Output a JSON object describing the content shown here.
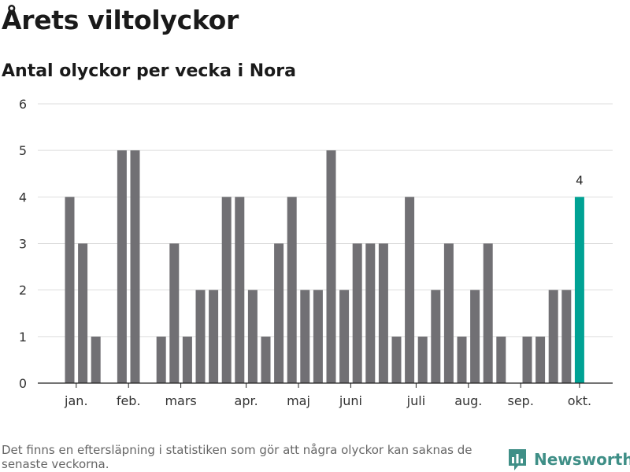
{
  "title": "Årets viltolyckor",
  "subtitle": "Antal olyckor per vecka i Nora",
  "footnote": "Det finns en eftersläpning i statistiken som gör att några olyckor kan saknas de senaste veckorna.",
  "brand": {
    "name": "Newsworthy",
    "icon": "newsworthy-logo-icon",
    "color": "#3f8f87"
  },
  "chart_data": {
    "type": "bar",
    "ylim": [
      0,
      6
    ],
    "yticks": [
      0,
      1,
      2,
      3,
      4,
      5,
      6
    ],
    "grid": true,
    "bar_color": "#717074",
    "highlight_color": "#00a294",
    "highlight_index": 39,
    "values": [
      4,
      3,
      1,
      0,
      5,
      5,
      0,
      1,
      3,
      1,
      2,
      2,
      4,
      4,
      2,
      1,
      3,
      4,
      2,
      2,
      5,
      2,
      3,
      3,
      3,
      1,
      4,
      1,
      2,
      3,
      1,
      2,
      3,
      1,
      0,
      1,
      1,
      2,
      2,
      4
    ],
    "data_labels": [
      {
        "index": 39,
        "text": "4"
      }
    ],
    "month_labels": [
      {
        "label": "jan.",
        "index": 0.5
      },
      {
        "label": "feb.",
        "index": 4.5
      },
      {
        "label": "mars",
        "index": 8.5
      },
      {
        "label": "apr.",
        "index": 13.5
      },
      {
        "label": "maj",
        "index": 17.5
      },
      {
        "label": "juni",
        "index": 21.5
      },
      {
        "label": "juli",
        "index": 26.5
      },
      {
        "label": "aug.",
        "index": 30.5
      },
      {
        "label": "sep.",
        "index": 34.5
      },
      {
        "label": "okt.",
        "index": 39
      }
    ]
  }
}
